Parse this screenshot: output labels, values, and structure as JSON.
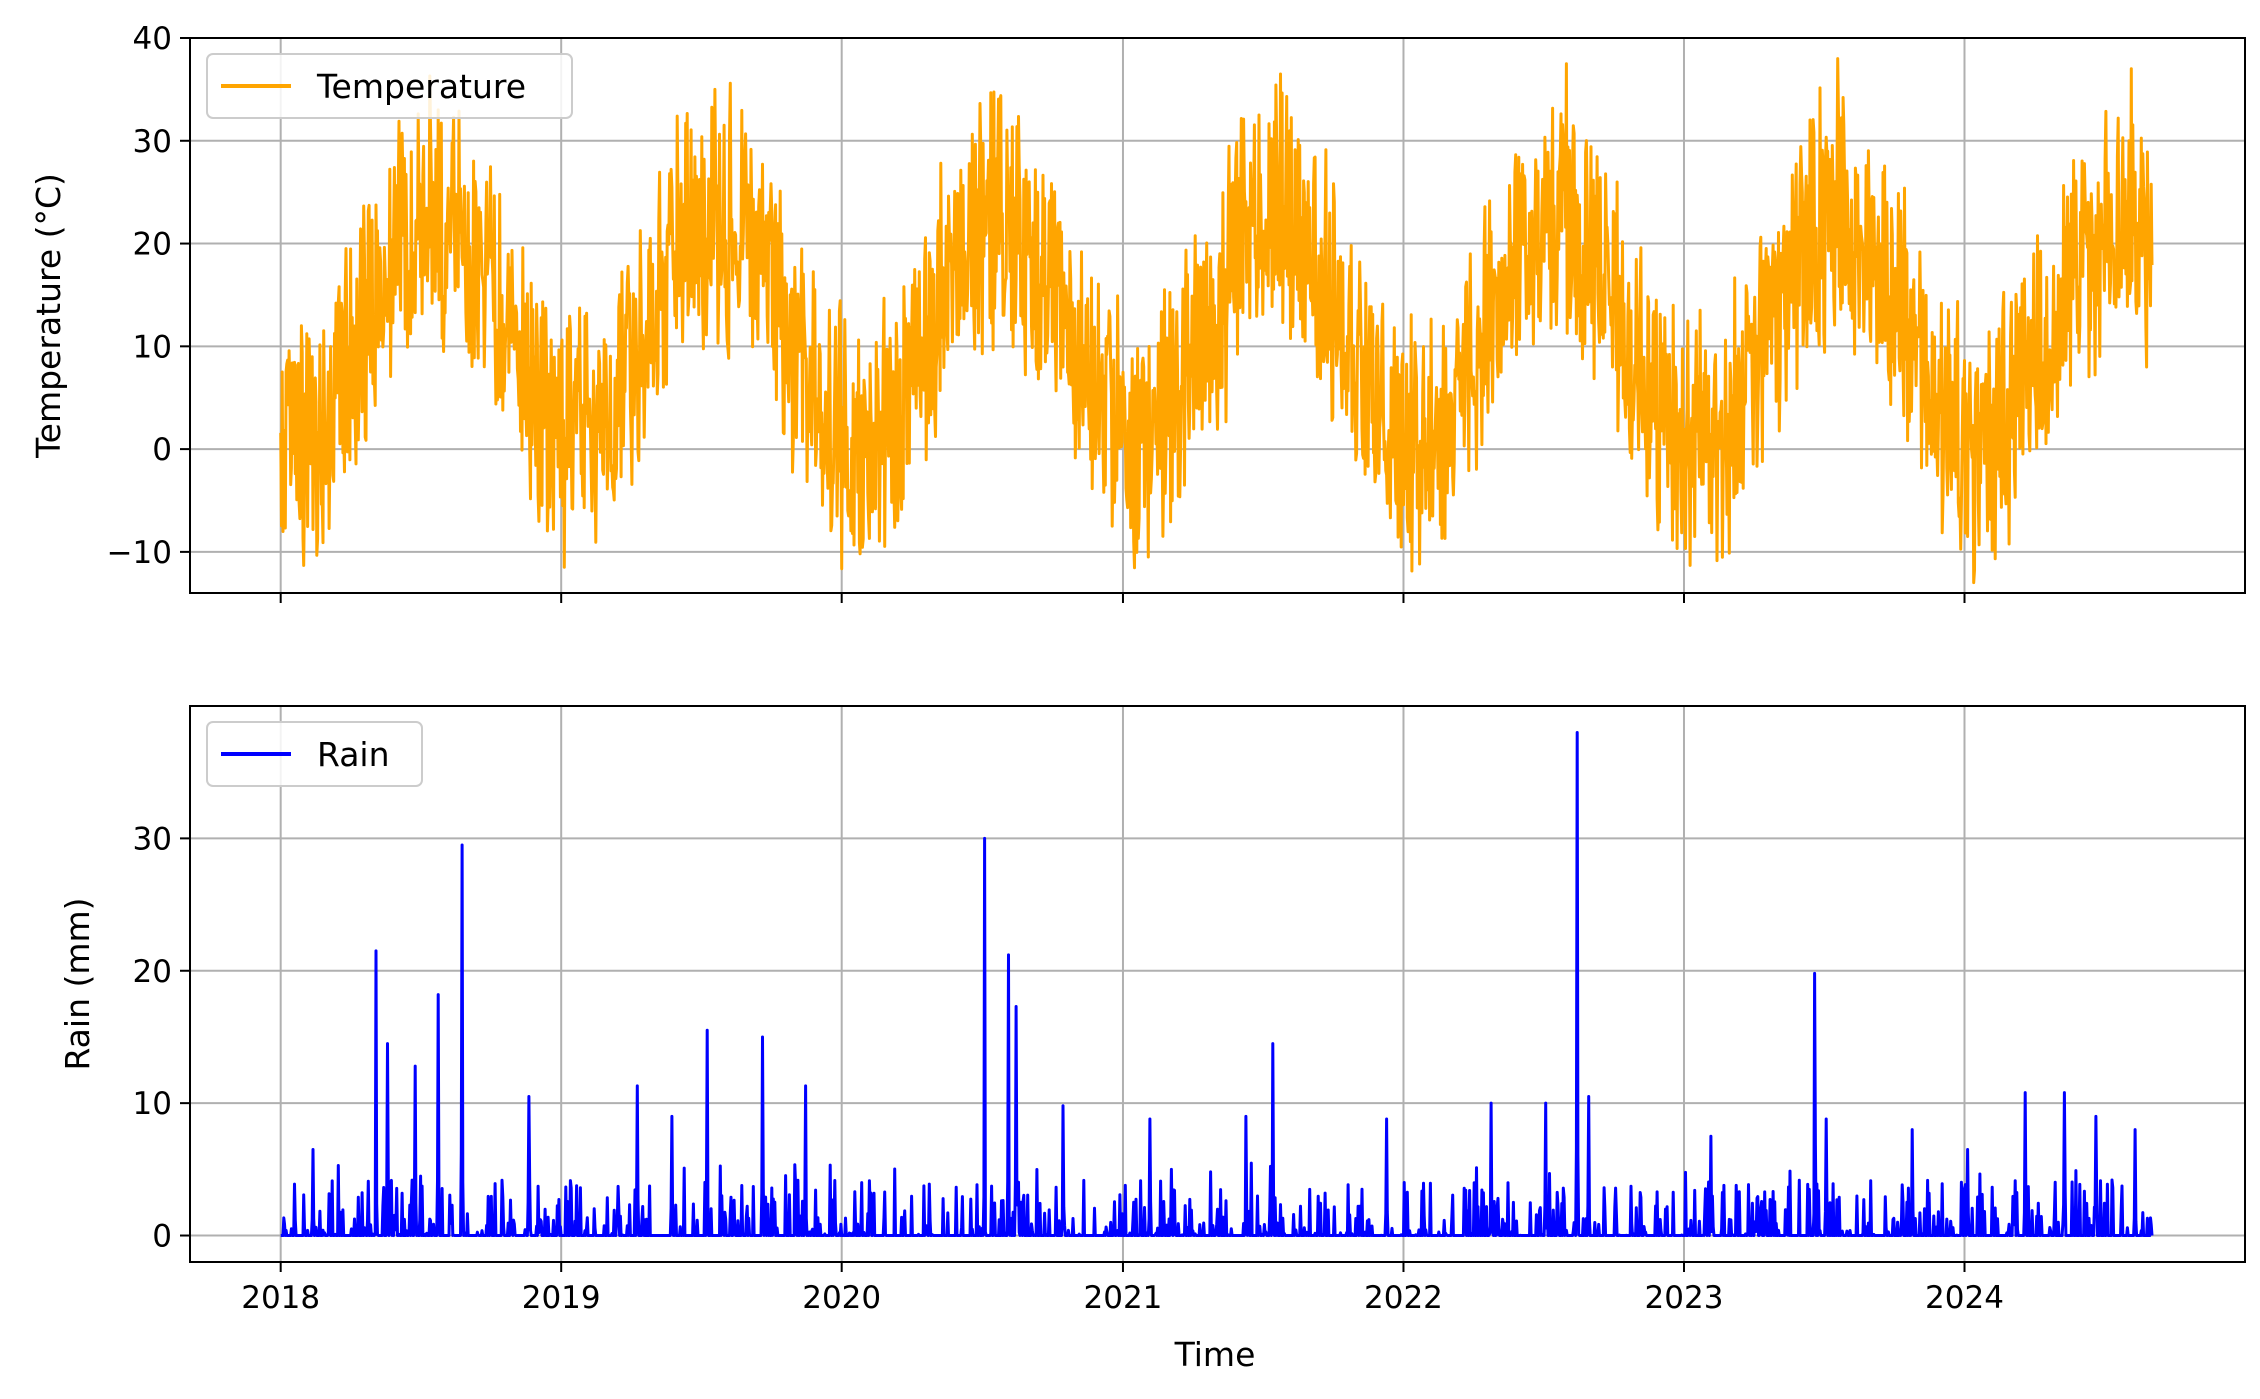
{
  "chart_data": [
    {
      "type": "line",
      "title": "",
      "xlabel": "",
      "ylabel": "Temperature (°C)",
      "ylim": [
        -14,
        40
      ],
      "yticks": [
        40,
        30,
        20,
        10,
        0,
        -10
      ],
      "ytick_labels": [
        "40",
        "30",
        "20",
        "10",
        "0",
        "−10"
      ],
      "x_range": [
        "2017-09-05",
        "2024-12-31"
      ],
      "xticks": [
        "2018",
        "2019",
        "2020",
        "2021",
        "2022",
        "2023",
        "2024"
      ],
      "grid": true,
      "legend_position": "top-left",
      "series": [
        {
          "name": "Temperature",
          "color": "#FFA500",
          "x_start": "2018-01-01",
          "x_end": "2024-09-01",
          "description": "daily-varying temperature with annual cycle; peak of each year around late July",
          "yearly_peaks": [
            {
              "year": 2018,
              "date": "2018-07-25",
              "max": 33
            },
            {
              "year": 2019,
              "date": "2019-07-20",
              "max": 35
            },
            {
              "year": 2020,
              "date": "2020-07-25",
              "max": 34
            },
            {
              "year": 2021,
              "date": "2021-07-25",
              "max": 36.5
            },
            {
              "year": 2022,
              "date": "2022-08-01",
              "max": 37.5
            },
            {
              "year": 2023,
              "date": "2023-07-20",
              "max": 38
            },
            {
              "year": 2024,
              "date": "2024-08-05",
              "max": 37
            }
          ],
          "yearly_troughs": [
            {
              "year": 2019,
              "date": "2019-01-05",
              "min": -11.5
            },
            {
              "year": 2020,
              "date": "2020-01-10",
              "min": -6.5
            },
            {
              "year": 2021,
              "date": "2021-01-15",
              "min": -9
            },
            {
              "year": 2022,
              "date": "2022-01-10",
              "min": -9
            },
            {
              "year": 2023,
              "date": "2023-01-15",
              "min": -8.5
            },
            {
              "year": 2024,
              "date": "2024-01-05",
              "min": -8.5
            }
          ]
        }
      ]
    },
    {
      "type": "line",
      "title": "",
      "xlabel": "Time",
      "ylabel": "Rain (mm)",
      "ylim": [
        -2,
        40
      ],
      "yticks": [
        30,
        20,
        10,
        0
      ],
      "ytick_labels": [
        "30",
        "20",
        "10",
        "0"
      ],
      "x_range": [
        "2017-09-05",
        "2024-12-31"
      ],
      "xticks": [
        "2018",
        "2019",
        "2020",
        "2021",
        "2022",
        "2023",
        "2024"
      ],
      "grid": true,
      "legend_position": "top-left",
      "series": [
        {
          "name": "Rain",
          "color": "#0000FF",
          "x_start": "2018-01-01",
          "x_end": "2024-09-01",
          "major_peaks": [
            {
              "date": "2018-02-12",
              "value": 6.5
            },
            {
              "date": "2018-05-05",
              "value": 21.5
            },
            {
              "date": "2018-05-20",
              "value": 14.5
            },
            {
              "date": "2018-06-25",
              "value": 12.8
            },
            {
              "date": "2018-07-25",
              "value": 18.2
            },
            {
              "date": "2018-08-25",
              "value": 29.5
            },
            {
              "date": "2018-11-20",
              "value": 10.5
            },
            {
              "date": "2019-04-10",
              "value": 11.3
            },
            {
              "date": "2019-05-25",
              "value": 9.0
            },
            {
              "date": "2019-07-10",
              "value": 15.5
            },
            {
              "date": "2019-09-20",
              "value": 15.0
            },
            {
              "date": "2019-11-15",
              "value": 11.3
            },
            {
              "date": "2020-07-05",
              "value": 30.0
            },
            {
              "date": "2020-08-05",
              "value": 21.2
            },
            {
              "date": "2020-08-15",
              "value": 17.3
            },
            {
              "date": "2020-10-15",
              "value": 9.8
            },
            {
              "date": "2021-02-05",
              "value": 8.8
            },
            {
              "date": "2021-06-10",
              "value": 9.0
            },
            {
              "date": "2021-07-15",
              "value": 14.5
            },
            {
              "date": "2021-12-10",
              "value": 8.8
            },
            {
              "date": "2022-04-25",
              "value": 10.0
            },
            {
              "date": "2022-07-05",
              "value": 10.0
            },
            {
              "date": "2022-08-15",
              "value": 38.0
            },
            {
              "date": "2022-08-30",
              "value": 10.5
            },
            {
              "date": "2023-02-05",
              "value": 7.5
            },
            {
              "date": "2023-06-20",
              "value": 19.8
            },
            {
              "date": "2023-07-05",
              "value": 8.8
            },
            {
              "date": "2023-10-25",
              "value": 8.0
            },
            {
              "date": "2024-01-05",
              "value": 6.5
            },
            {
              "date": "2024-03-20",
              "value": 10.8
            },
            {
              "date": "2024-05-10",
              "value": 10.8
            },
            {
              "date": "2024-06-20",
              "value": 9.0
            },
            {
              "date": "2024-08-10",
              "value": 8.0
            }
          ]
        }
      ]
    }
  ]
}
